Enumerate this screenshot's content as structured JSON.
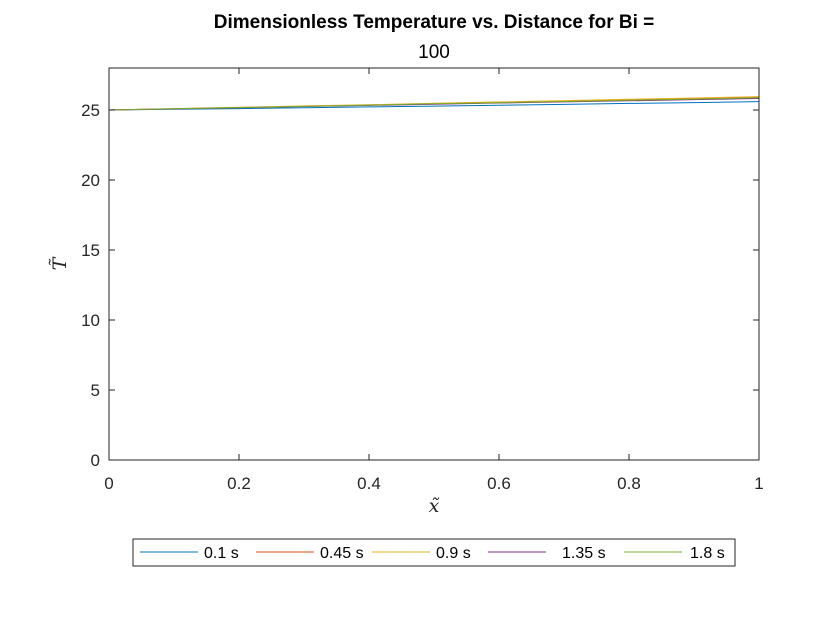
{
  "chart_data": {
    "type": "line",
    "title": "Dimensionless Temperature vs. Distance for Bi =",
    "subtitle": "100",
    "xlabel": "x̃",
    "ylabel": "T̃",
    "xlim": [
      0,
      1
    ],
    "ylim": [
      0,
      28
    ],
    "xticks": [
      0,
      0.2,
      0.4,
      0.6,
      0.8,
      1
    ],
    "xtick_labels": [
      "0",
      "0.2",
      "0.4",
      "0.6",
      "0.8",
      "1"
    ],
    "yticks": [
      0,
      5,
      10,
      15,
      20,
      25
    ],
    "ytick_labels": [
      "0",
      "5",
      "10",
      "15",
      "20",
      "25"
    ],
    "grid": false,
    "legend_position": "bottom-outside",
    "x": [
      0,
      0.1,
      0.2,
      0.3,
      0.4,
      0.5,
      0.6,
      0.7,
      0.8,
      0.9,
      1.0
    ],
    "series": [
      {
        "name": "0.1 s",
        "color": "#0072BD",
        "values": [
          25.0,
          25.05,
          25.1,
          25.16,
          25.22,
          25.28,
          25.34,
          25.4,
          25.47,
          25.53,
          25.6
        ]
      },
      {
        "name": "0.45 s",
        "color": "#D95319",
        "values": [
          25.0,
          25.09,
          25.18,
          25.27,
          25.36,
          25.45,
          25.54,
          25.63,
          25.72,
          25.81,
          25.9
        ]
      },
      {
        "name": "0.9 s",
        "color": "#EDB120",
        "values": [
          25.0,
          25.1,
          25.19,
          25.29,
          25.38,
          25.48,
          25.58,
          25.67,
          25.77,
          25.86,
          25.96
        ]
      },
      {
        "name": "1.35 s",
        "color": "#7E2F8E",
        "values": [
          25.0,
          25.08,
          25.16,
          25.25,
          25.33,
          25.41,
          25.5,
          25.58,
          25.66,
          25.74,
          25.82
        ]
      },
      {
        "name": "1.8 s",
        "color": "#77AC30",
        "values": [
          25.0,
          25.09,
          25.17,
          25.26,
          25.35,
          25.44,
          25.52,
          25.61,
          25.7,
          25.78,
          25.87
        ]
      }
    ]
  }
}
